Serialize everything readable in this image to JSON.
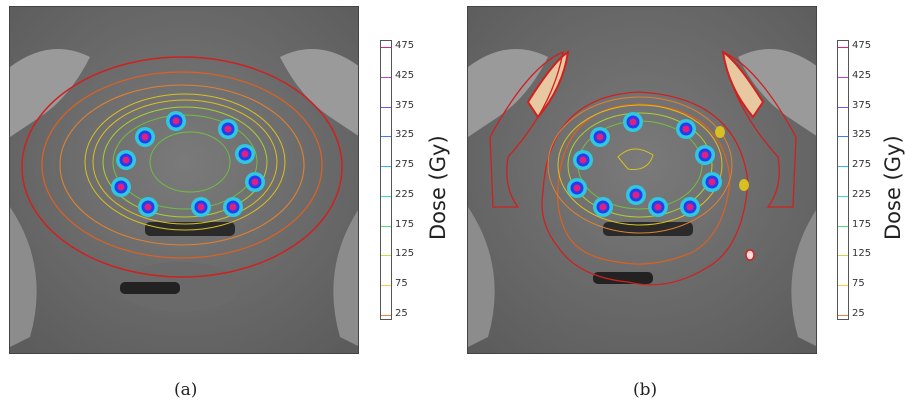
{
  "figure": {
    "panels": [
      {
        "id": "a",
        "caption": "(a)"
      },
      {
        "id": "b",
        "caption": "(b)"
      }
    ],
    "colorbar": {
      "title": "Dose (Gy)",
      "ticks": [
        "475",
        "425",
        "375",
        "325",
        "275",
        "225",
        "175",
        "125",
        "75",
        "25"
      ],
      "tick_colors": [
        "#e0207a",
        "#c040e0",
        "#7050ff",
        "#3a7cff",
        "#30b8ff",
        "#30e0c8",
        "#50e070",
        "#c0e040",
        "#ffcc40",
        "#f08040"
      ]
    },
    "contour_colors": {
      "outer": "#d02020",
      "mid": "#e06020",
      "yellow": "#d8c020",
      "green": "#70c040",
      "cyan": "#30c8e0",
      "blue": "#2040f0",
      "magenta": "#e02080"
    }
  }
}
